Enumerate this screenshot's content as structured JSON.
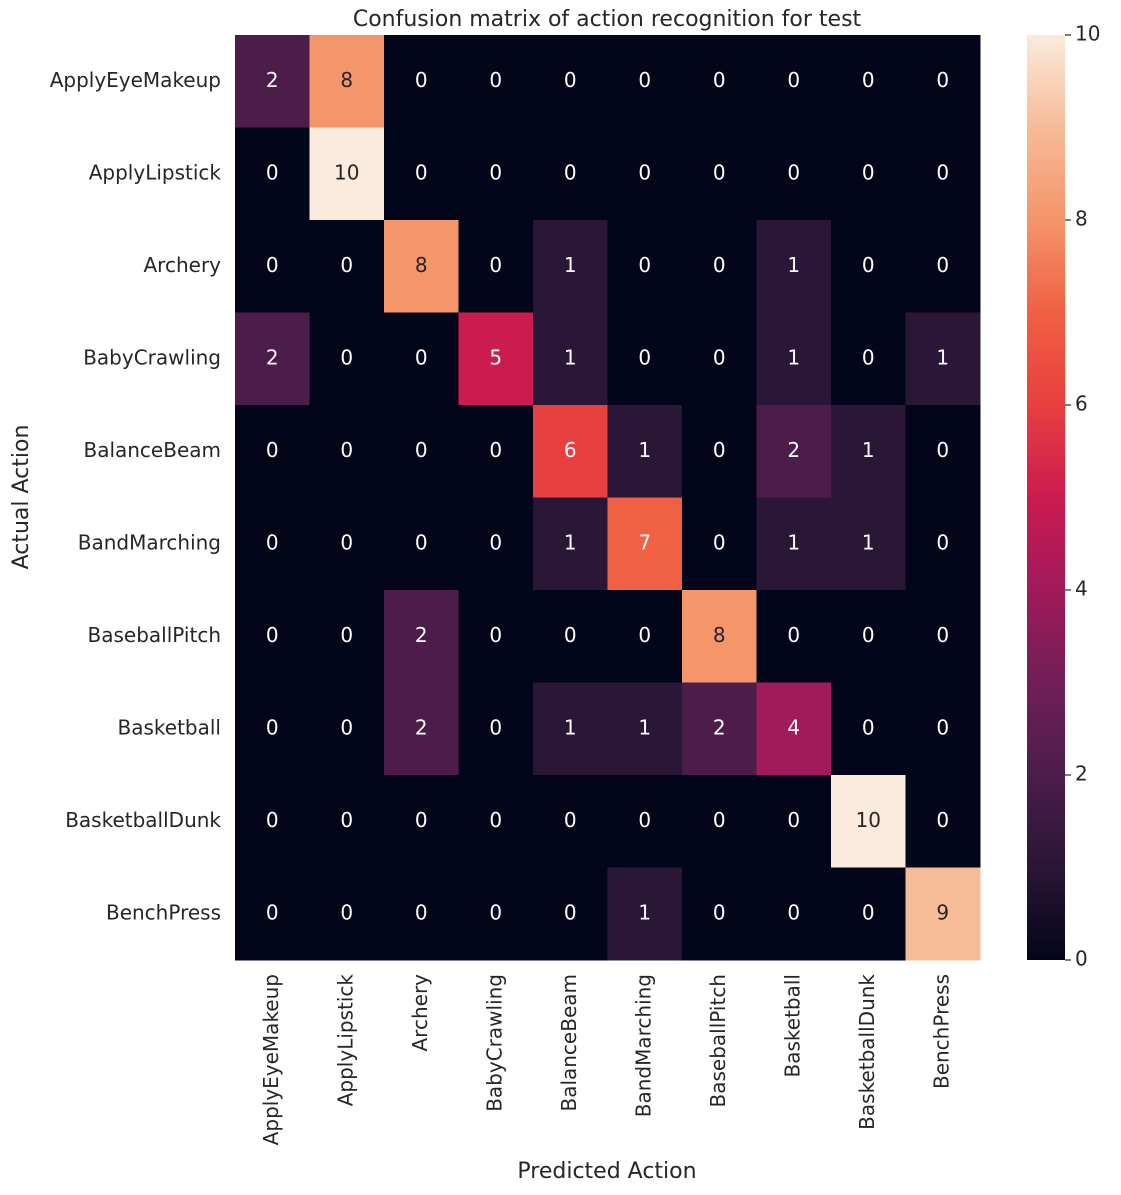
{
  "chart_data": {
    "type": "heatmap",
    "title": "Confusion matrix of action recognition for test",
    "xlabel": "Predicted Action",
    "ylabel": "Actual Action",
    "x_categories": [
      "ApplyEyeMakeup",
      "ApplyLipstick",
      "Archery",
      "BabyCrawling",
      "BalanceBeam",
      "BandMarching",
      "BaseballPitch",
      "Basketball",
      "BasketballDunk",
      "BenchPress"
    ],
    "y_categories": [
      "ApplyEyeMakeup",
      "ApplyLipstick",
      "Archery",
      "BabyCrawling",
      "BalanceBeam",
      "BandMarching",
      "BaseballPitch",
      "Basketball",
      "BasketballDunk",
      "BenchPress"
    ],
    "values": [
      [
        2,
        8,
        0,
        0,
        0,
        0,
        0,
        0,
        0,
        0
      ],
      [
        0,
        10,
        0,
        0,
        0,
        0,
        0,
        0,
        0,
        0
      ],
      [
        0,
        0,
        8,
        0,
        1,
        0,
        0,
        1,
        0,
        0
      ],
      [
        2,
        0,
        0,
        5,
        1,
        0,
        0,
        1,
        0,
        1
      ],
      [
        0,
        0,
        0,
        0,
        6,
        1,
        0,
        2,
        1,
        0
      ],
      [
        0,
        0,
        0,
        0,
        1,
        7,
        0,
        1,
        1,
        0
      ],
      [
        0,
        0,
        2,
        0,
        0,
        0,
        8,
        0,
        0,
        0
      ],
      [
        0,
        0,
        2,
        0,
        1,
        1,
        2,
        4,
        0,
        0
      ],
      [
        0,
        0,
        0,
        0,
        0,
        0,
        0,
        0,
        10,
        0
      ],
      [
        0,
        0,
        0,
        0,
        0,
        1,
        0,
        0,
        0,
        9
      ]
    ],
    "clim": [
      0,
      10
    ],
    "cticks": [
      0,
      2,
      4,
      6,
      8,
      10
    ],
    "colorscale": [
      "#03051a",
      "#2a1636",
      "#4c1d4b",
      "#701f57",
      "#a11a5b",
      "#cb1b4f",
      "#e83f3f",
      "#f06043",
      "#f4956a",
      "#f6bb97",
      "#faebdd"
    ]
  }
}
